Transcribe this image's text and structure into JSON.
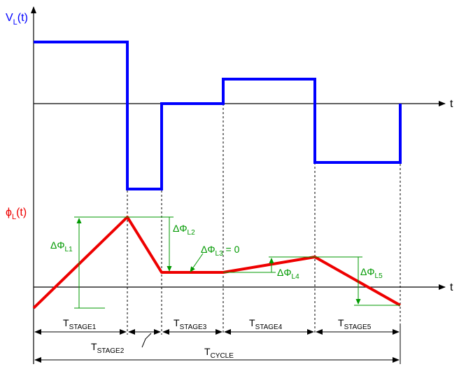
{
  "colors": {
    "voltage": "#0000ff",
    "flux": "#ee0000",
    "delta": "#009900",
    "axis": "#000000",
    "guide": "#000000"
  },
  "top_axis": {
    "y_label_main": "V",
    "y_label_sub": "L",
    "y_label_tail": "(t)",
    "x_label": "t"
  },
  "bottom_axis": {
    "y_label_main": "ϕ",
    "y_label_sub": "L",
    "y_label_tail": "(t)",
    "x_label": "t"
  },
  "delta_labels": [
    {
      "main": "ΔΦ",
      "sub": "L1",
      "tail": ""
    },
    {
      "main": "ΔΦ",
      "sub": "L2",
      "tail": ""
    },
    {
      "main": "ΔΦ",
      "sub": "L3",
      "tail": " = 0"
    },
    {
      "main": "ΔΦ",
      "sub": "L4",
      "tail": ""
    },
    {
      "main": "ΔΦ",
      "sub": "L5",
      "tail": ""
    }
  ],
  "stages": [
    {
      "main": "T",
      "sub": "STAGE1"
    },
    {
      "main": "T",
      "sub": "STAGE2"
    },
    {
      "main": "T",
      "sub": "STAGE3"
    },
    {
      "main": "T",
      "sub": "STAGE4"
    },
    {
      "main": "T",
      "sub": "STAGE5"
    }
  ],
  "cycle": {
    "main": "T",
    "sub": "CYCLE"
  }
}
